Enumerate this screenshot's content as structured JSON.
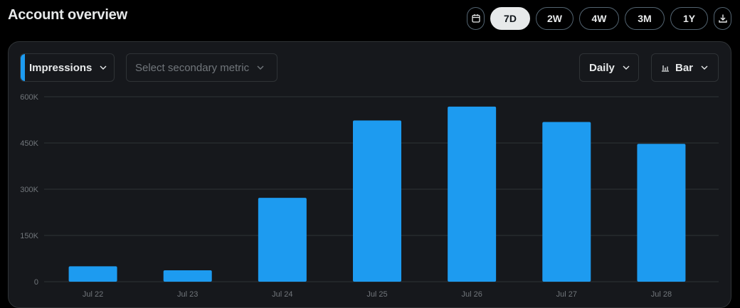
{
  "header": {
    "title": "Account overview"
  },
  "range_selector": {
    "calendar_icon": "calendar-icon",
    "ranges": [
      "7D",
      "2W",
      "4W",
      "3M",
      "1Y"
    ],
    "active": "7D",
    "download_icon": "download-icon"
  },
  "controls": {
    "primary_metric": "Impressions",
    "secondary_metric_placeholder": "Select secondary metric",
    "interval": "Daily",
    "chart_type": "Bar"
  },
  "colors": {
    "accent": "#1d9bf0",
    "background": "#000000",
    "card": "#16181c",
    "grid": "#2f3336"
  },
  "chart_data": {
    "type": "bar",
    "categories": [
      "Jul 22",
      "Jul 23",
      "Jul 24",
      "Jul 25",
      "Jul 26",
      "Jul 27",
      "Jul 28"
    ],
    "values": [
      50000,
      37000,
      272000,
      523000,
      568000,
      518000,
      447000
    ],
    "ylim": [
      0,
      600000
    ],
    "yticks": [
      0,
      150000,
      300000,
      450000,
      600000
    ],
    "ytick_labels": [
      "0",
      "150K",
      "300K",
      "450K",
      "600K"
    ],
    "grid": true
  }
}
